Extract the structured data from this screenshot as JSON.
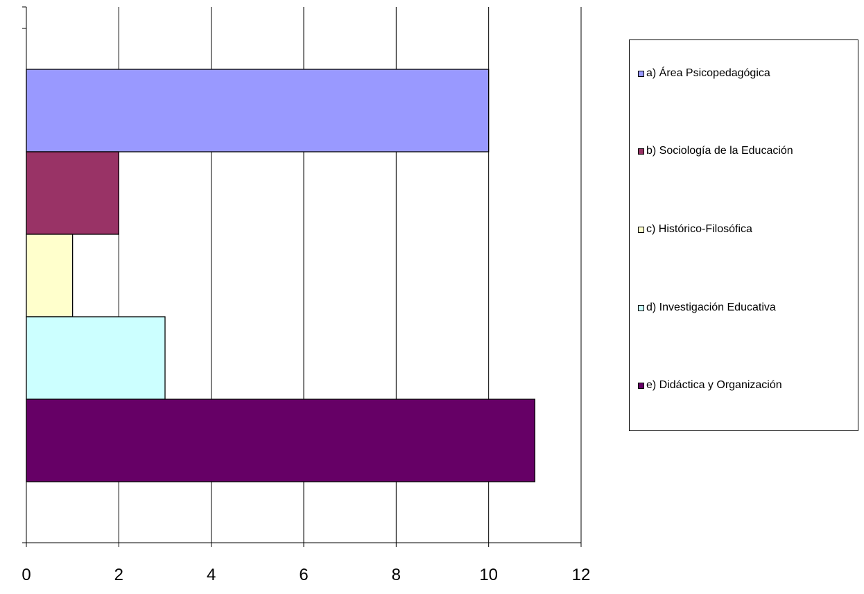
{
  "chart_data": {
    "type": "bar",
    "orientation": "horizontal",
    "categories": [
      "a) Área Psicopedagógica",
      "b) Sociología de la Educación",
      "c) Histórico-Filosófica",
      "d) Investigación Educativa",
      "e) Didáctica y Organización"
    ],
    "values": [
      10,
      2,
      1,
      3,
      11
    ],
    "colors": [
      "#9999FF",
      "#993366",
      "#FFFFCC",
      "#CCFFFF",
      "#660066"
    ],
    "xlim": [
      0,
      12
    ],
    "xticks": [
      "0",
      "2",
      "4",
      "6",
      "8",
      "10",
      "12"
    ],
    "grid": true,
    "legend_position": "right",
    "title": "",
    "xlabel": "",
    "ylabel": ""
  }
}
